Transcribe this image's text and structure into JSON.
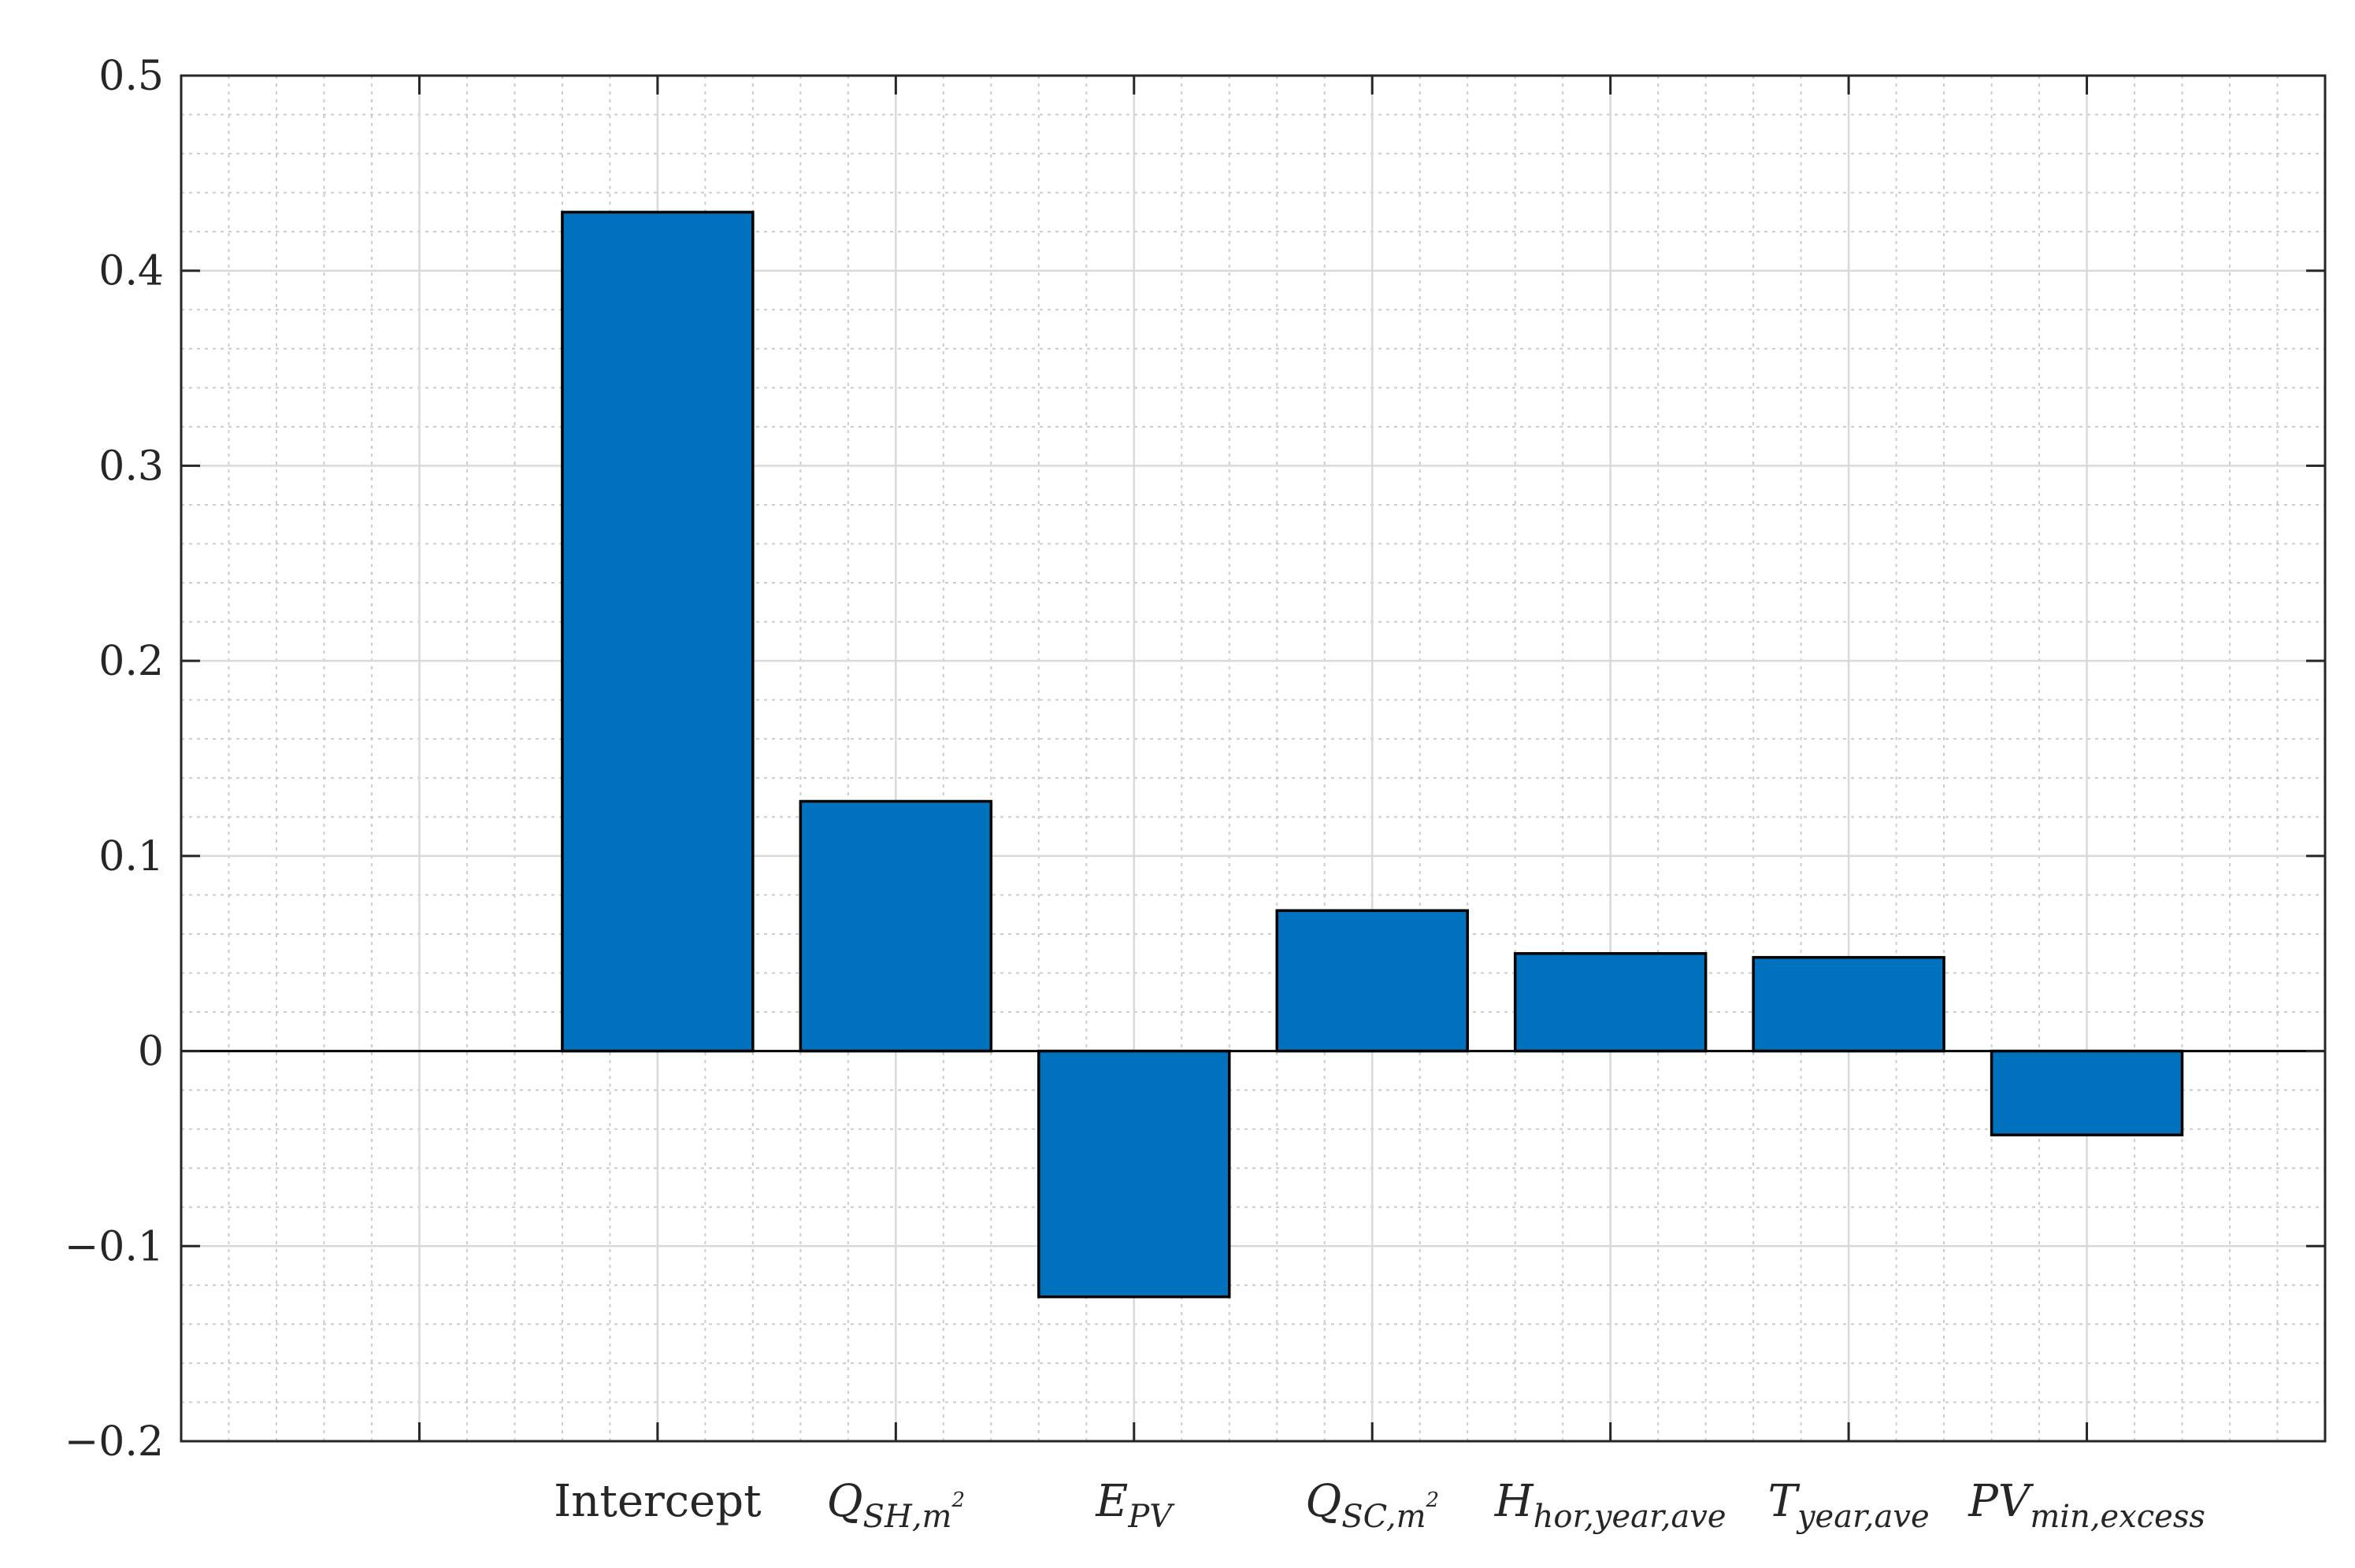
{
  "chart_data": {
    "type": "bar",
    "title": "",
    "xlabel": "",
    "ylabel": "",
    "ylim": [
      -0.2,
      0.5
    ],
    "yticks": [
      -0.2,
      -0.1,
      0,
      0.1,
      0.2,
      0.3,
      0.4,
      0.5
    ],
    "ytick_labels": [
      "−0.2",
      "−0.1",
      "0",
      "0.1",
      "0.2",
      "0.3",
      "0.4",
      "0.5"
    ],
    "categories": [
      {
        "base": "Intercept",
        "sub": "",
        "sup": "",
        "italic": false
      },
      {
        "base": "Q",
        "sub": "SH,m",
        "sup": "2",
        "italic": true
      },
      {
        "base": "E",
        "sub": "PV",
        "sup": "",
        "italic": true
      },
      {
        "base": "Q",
        "sub": "SC,m",
        "sup": "2",
        "italic": true
      },
      {
        "base": "H",
        "sub": "hor,year,ave",
        "sup": "",
        "italic": true
      },
      {
        "base": "T",
        "sub": "year,ave",
        "sup": "",
        "italic": true
      },
      {
        "base": "PV",
        "sub": "min,excess",
        "sup": "",
        "italic": true
      }
    ],
    "values": [
      0.43,
      0.128,
      -0.126,
      0.072,
      0.05,
      0.048,
      -0.043
    ],
    "grid": true,
    "minor_grid": true,
    "bar_color": "#0072BD",
    "edge_color": "#000000"
  }
}
